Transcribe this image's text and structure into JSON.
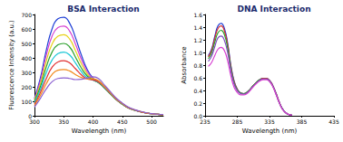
{
  "chart_data": [
    {
      "type": "line",
      "title": "BSA Interaction",
      "x_label": "Wavelength (nm)",
      "y_label": "Fluorescence Intensity (a.u.)",
      "x": [
        300,
        310,
        320,
        330,
        340,
        350,
        360,
        370,
        380,
        390,
        400,
        410,
        420,
        430,
        440,
        450,
        460,
        470,
        480,
        490,
        500,
        510,
        520
      ],
      "series": [
        {
          "color": "#1f3fd6",
          "values": [
            120,
            260,
            450,
            600,
            670,
            680,
            640,
            540,
            420,
            320,
            260,
            230,
            190,
            150,
            110,
            80,
            55,
            40,
            28,
            20,
            14,
            10,
            7
          ]
        },
        {
          "color": "#d63fd0",
          "values": [
            115,
            240,
            415,
            550,
            610,
            620,
            585,
            495,
            390,
            305,
            255,
            228,
            190,
            150,
            110,
            80,
            55,
            40,
            28,
            20,
            14,
            10,
            7
          ]
        },
        {
          "color": "#e8d21a",
          "values": [
            110,
            220,
            375,
            495,
            550,
            560,
            530,
            450,
            360,
            290,
            250,
            226,
            190,
            150,
            110,
            80,
            55,
            40,
            28,
            20,
            14,
            10,
            7
          ]
        },
        {
          "color": "#2ca02c",
          "values": [
            100,
            200,
            335,
            440,
            490,
            500,
            475,
            405,
            330,
            275,
            248,
            226,
            190,
            150,
            110,
            80,
            55,
            40,
            28,
            20,
            14,
            10,
            7
          ]
        },
        {
          "color": "#19c6d6",
          "values": [
            90,
            180,
            295,
            385,
            430,
            440,
            420,
            365,
            305,
            262,
            246,
            228,
            192,
            152,
            112,
            82,
            56,
            41,
            29,
            20,
            14,
            10,
            7
          ]
        },
        {
          "color": "#e03030",
          "values": [
            80,
            160,
            255,
            335,
            372,
            380,
            365,
            325,
            283,
            255,
            248,
            232,
            196,
            155,
            114,
            84,
            57,
            42,
            29,
            20,
            14,
            10,
            7
          ]
        },
        {
          "color": "#f08a1c",
          "values": [
            70,
            140,
            220,
            285,
            315,
            320,
            310,
            285,
            265,
            255,
            255,
            240,
            200,
            158,
            116,
            85,
            58,
            42,
            30,
            21,
            14,
            10,
            7
          ]
        },
        {
          "color": "#8a5fd0",
          "values": [
            60,
            120,
            185,
            235,
            258,
            262,
            258,
            250,
            252,
            262,
            270,
            255,
            210,
            165,
            120,
            88,
            60,
            44,
            31,
            22,
            15,
            11,
            8
          ]
        }
      ],
      "xlim": [
        300,
        520
      ],
      "xticks": [
        300,
        350,
        400,
        450,
        500
      ],
      "ylim": [
        0,
        700
      ],
      "yticks": [
        0,
        100,
        200,
        300,
        400,
        500,
        600,
        700
      ],
      "grid": false
    },
    {
      "type": "line",
      "title": "DNA Interaction",
      "x_label": "Wavelength (nm)",
      "y_label": "Absorbance",
      "x": [
        240,
        245,
        250,
        255,
        260,
        265,
        270,
        275,
        280,
        285,
        290,
        295,
        300,
        305,
        310,
        315,
        320,
        325,
        330,
        335,
        340,
        345,
        350,
        355,
        360,
        365,
        370
      ],
      "series": [
        {
          "color": "#1f3fd6",
          "values": [
            0.95,
            1.05,
            1.25,
            1.42,
            1.46,
            1.38,
            1.15,
            0.8,
            0.55,
            0.42,
            0.36,
            0.35,
            0.37,
            0.42,
            0.48,
            0.53,
            0.57,
            0.59,
            0.59,
            0.56,
            0.48,
            0.36,
            0.22,
            0.11,
            0.05,
            0.02,
            0.01
          ]
        },
        {
          "color": "#d62f2f",
          "values": [
            0.93,
            1.03,
            1.22,
            1.38,
            1.42,
            1.34,
            1.12,
            0.78,
            0.54,
            0.42,
            0.36,
            0.35,
            0.37,
            0.42,
            0.48,
            0.53,
            0.57,
            0.59,
            0.59,
            0.56,
            0.48,
            0.36,
            0.22,
            0.11,
            0.05,
            0.02,
            0.01
          ]
        },
        {
          "color": "#2ca02c",
          "values": [
            0.9,
            0.99,
            1.16,
            1.31,
            1.35,
            1.28,
            1.07,
            0.75,
            0.52,
            0.41,
            0.36,
            0.35,
            0.37,
            0.42,
            0.48,
            0.53,
            0.57,
            0.58,
            0.58,
            0.55,
            0.47,
            0.35,
            0.21,
            0.11,
            0.05,
            0.02,
            0.01
          ]
        },
        {
          "color": "#7f4fc0",
          "values": [
            0.86,
            0.94,
            1.09,
            1.23,
            1.26,
            1.19,
            1.0,
            0.71,
            0.5,
            0.4,
            0.35,
            0.34,
            0.36,
            0.41,
            0.47,
            0.52,
            0.56,
            0.58,
            0.58,
            0.55,
            0.47,
            0.35,
            0.21,
            0.11,
            0.05,
            0.02,
            0.01
          ]
        },
        {
          "color": "#d63fd0",
          "values": [
            0.78,
            0.84,
            0.95,
            1.05,
            1.08,
            1.03,
            0.87,
            0.63,
            0.45,
            0.37,
            0.33,
            0.33,
            0.35,
            0.4,
            0.46,
            0.51,
            0.55,
            0.57,
            0.57,
            0.54,
            0.46,
            0.34,
            0.21,
            0.1,
            0.05,
            0.02,
            0.01
          ]
        }
      ],
      "xlim": [
        235,
        435
      ],
      "xticks": [
        235,
        285,
        335,
        385,
        435
      ],
      "ylim": [
        0,
        1.6
      ],
      "yticks": [
        {
          "value": 0,
          "label": "0.0"
        },
        0.2,
        0.4,
        0.6,
        0.8,
        {
          "value": 1,
          "label": "1.0"
        },
        1.2,
        1.4,
        1.6
      ],
      "grid": false
    }
  ]
}
